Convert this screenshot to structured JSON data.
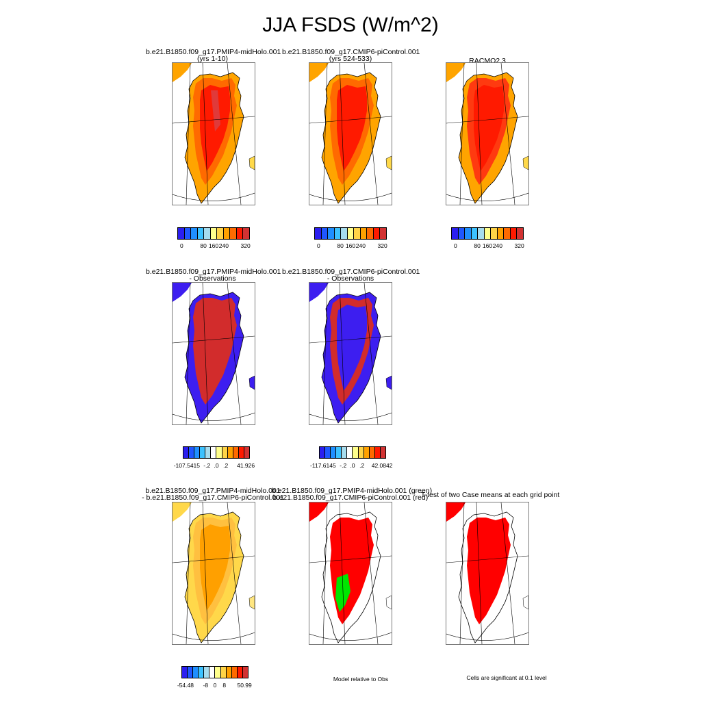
{
  "title": "JJA FSDS (W/m^2)",
  "rows": [
    {
      "panels": [
        {
          "title1": "b.e21.B1850.f09_g17.PMIP4-midHolo.001",
          "title2": "(yrs 1-10)",
          "interior": "#ff1a00",
          "cap": "#ff6a00",
          "coast": "#ffa400",
          "sea": "#ffd94a",
          "patch": "#e03a3a"
        },
        {
          "title1": "b.e21.B1850.f09_g17.CMIP6-piControl.001",
          "title2": "(yrs 524-533)",
          "interior": "#ff1a00",
          "cap": "#ff6a00",
          "coast": "#ffa400",
          "sea": "#ffd94a",
          "patch": ""
        },
        {
          "title1": "RACMO2.3",
          "title2": "",
          "interior": "#ff1a00",
          "cap": "#ff3a10",
          "coast": "#ffa400",
          "sea": "#ffd94a",
          "patch": ""
        }
      ],
      "colorbars": [
        {
          "ticks": [
            "0",
            "80",
            "160",
            "240",
            "320"
          ]
        },
        {
          "ticks": [
            "0",
            "80",
            "160",
            "240",
            "320"
          ]
        },
        {
          "ticks": [
            "0",
            "80",
            "160",
            "240",
            "320"
          ]
        }
      ]
    },
    {
      "panels": [
        {
          "title1": "b.e21.B1850.f09_g17.PMIP4-midHolo.001",
          "title2": "- Observations",
          "interior": "#d22c2c",
          "cap": "#d22c2c",
          "coast": "#3d1ef0",
          "sea": "#3d1ef0",
          "patch": ""
        },
        {
          "title1": "b.e21.B1850.f09_g17.CMIP6-piControl.001",
          "title2": "- Observations",
          "interior": "#3d1ef0",
          "cap": "#d22c2c",
          "coast": "#3d1ef0",
          "sea": "#3d1ef0",
          "patch": ""
        }
      ],
      "colorbars": [
        {
          "ticks": [
            "-107.5415",
            "-.2",
            ".0",
            ".2",
            "41.926"
          ]
        },
        {
          "ticks": [
            "-117.6145",
            "-.2",
            ".0",
            ".2",
            "42.0842"
          ]
        }
      ]
    },
    {
      "panels": [
        {
          "title1": "b.e21.B1850.f09_g17.PMIP4-midHolo.001",
          "title2": "- b.e21.B1850.f09_g17.CMIP6-piControl.001",
          "interior": "#ffa000",
          "cap": "#ffc040",
          "coast": "#ffd84a",
          "sea": "#ffe680",
          "patch": ""
        },
        {
          "title1": "b.e21.B1850.f09_g17.PMIP4-midHolo.001 (green)",
          "title2": "b.e21.B1850.f09_g17.CMIP6-piControl.001 (red)",
          "interior": "#ff0000",
          "cap": "#ff0000",
          "coast": "#ffffff",
          "sea": "#ffffff",
          "patch": "#00e600"
        },
        {
          "title1": "T-test of two Case means at each grid point",
          "title2": "",
          "interior": "#ff0000",
          "cap": "#ff0000",
          "coast": "#ffffff",
          "sea": "#ffffff",
          "patch": ""
        }
      ],
      "colorbars": [
        {
          "ticks": [
            "-54.48",
            "-8",
            "0",
            "8",
            "50.99"
          ]
        }
      ],
      "notes": [
        "Model relative to Obs",
        "Cells are significant at 0.1 level"
      ]
    }
  ],
  "palettes": {
    "abs": [
      "#2b1ef0",
      "#1f57ff",
      "#1f8fff",
      "#3cc2ff",
      "#a6dcee",
      "#ffff8c",
      "#ffd447",
      "#ffa100",
      "#ff6a00",
      "#ff1a00",
      "#d23232"
    ],
    "diff": [
      "#2b1ef0",
      "#1f57ff",
      "#1f8fff",
      "#3cc2ff",
      "#a6dcee",
      "#ffffff",
      "#ffff8c",
      "#ffd447",
      "#ffa100",
      "#ff6a00",
      "#ff1a00",
      "#d23232"
    ]
  },
  "chart_data": [
    {
      "type": "heatmap",
      "title": "JJA FSDS (W/m^2)",
      "panel": "b.e21.B1850.f09_g17.PMIP4-midHolo.001 (yrs 1-10)",
      "colorbar_ticks": [
        0,
        80,
        160,
        240,
        320
      ]
    },
    {
      "type": "heatmap",
      "panel": "b.e21.B1850.f09_g17.CMIP6-piControl.001 (yrs 524-533)",
      "colorbar_ticks": [
        0,
        80,
        160,
        240,
        320
      ]
    },
    {
      "type": "heatmap",
      "panel": "RACMO2.3",
      "colorbar_ticks": [
        0,
        80,
        160,
        240,
        320
      ]
    },
    {
      "type": "heatmap",
      "panel": "b.e21.B1850.f09_g17.PMIP4-midHolo.001 - Observations",
      "colorbar_ticks": [
        "-107.5415",
        "-.2",
        ".0",
        ".2",
        "41.926"
      ]
    },
    {
      "type": "heatmap",
      "panel": "b.e21.B1850.f09_g17.CMIP6-piControl.001 - Observations",
      "colorbar_ticks": [
        "-117.6145",
        "-.2",
        ".0",
        ".2",
        "42.0842"
      ]
    },
    {
      "type": "heatmap",
      "panel": "b.e21.B1850.f09_g17.PMIP4-midHolo.001 - b.e21.B1850.f09_g17.CMIP6-piControl.001",
      "colorbar_ticks": [
        "-54.48",
        "-8",
        "0",
        "8",
        "50.99"
      ]
    },
    {
      "type": "heatmap",
      "panel": "b.e21.B1850.f09_g17.PMIP4-midHolo.001 (green) b.e21.B1850.f09_g17.CMIP6-piControl.001 (red)",
      "note": "Model relative to Obs"
    },
    {
      "type": "heatmap",
      "panel": "T-test of two Case means at each grid point",
      "note": "Cells are significant at 0.1 level"
    }
  ]
}
